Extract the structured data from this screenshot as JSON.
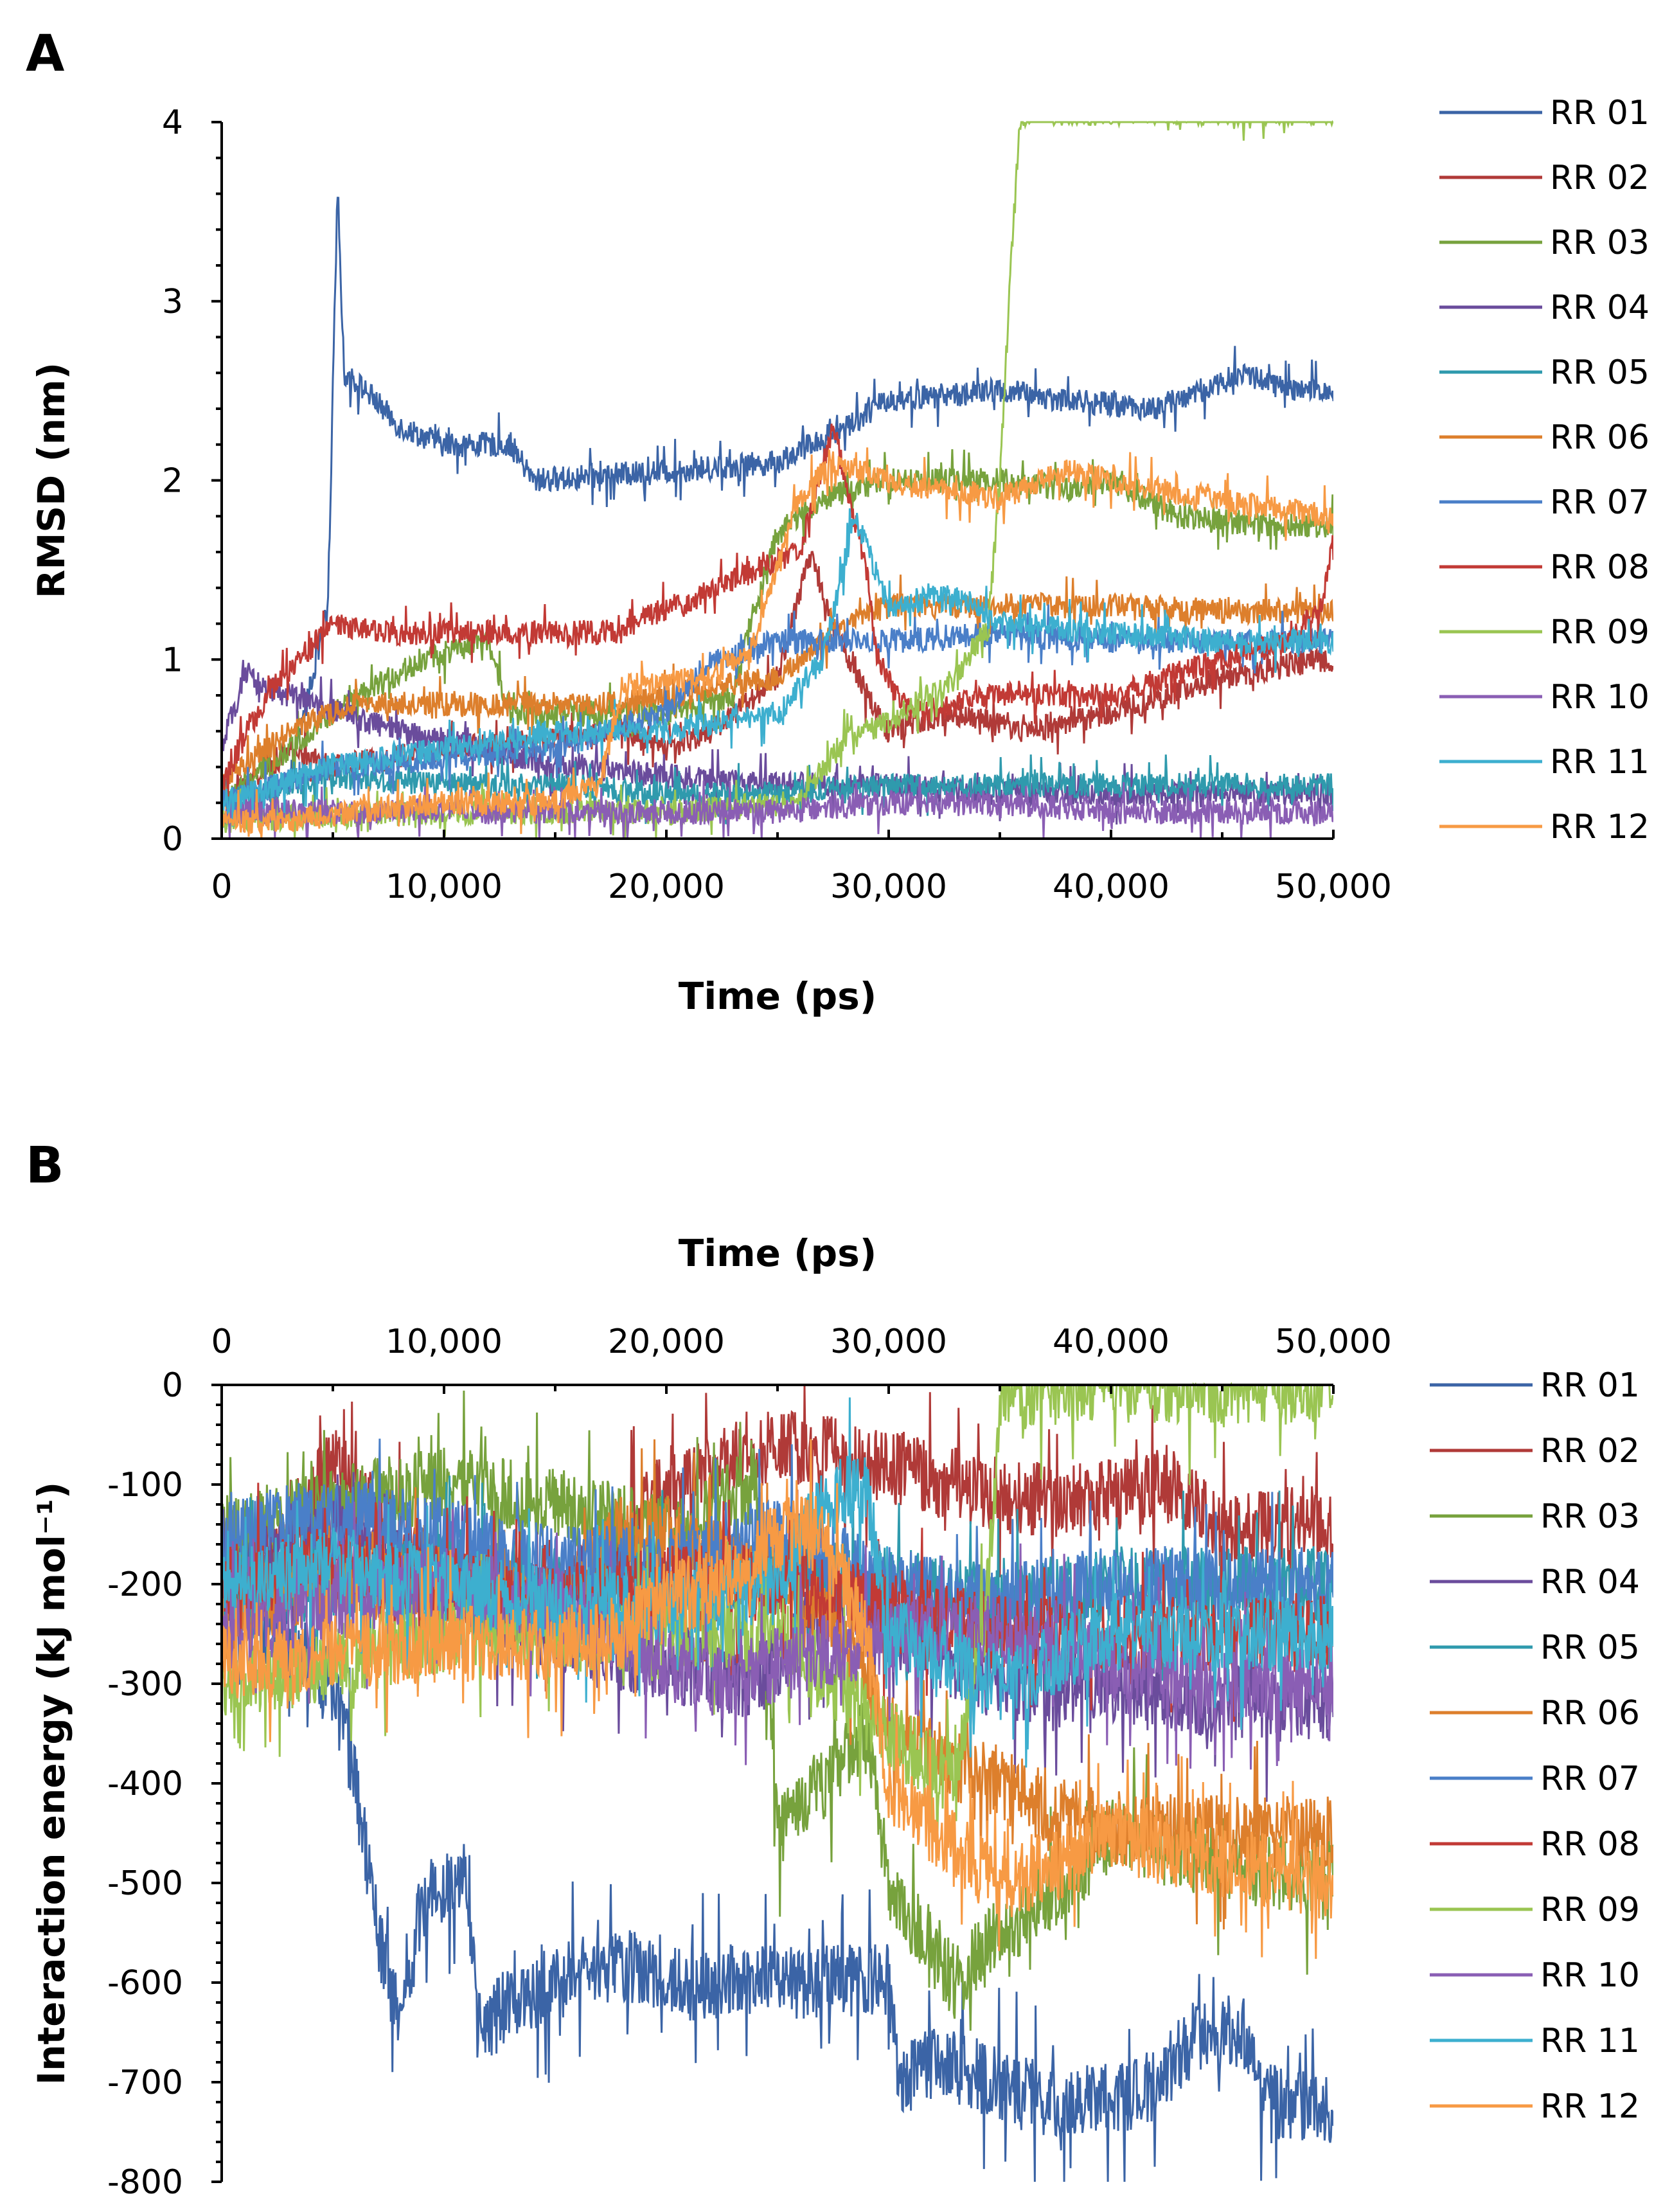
{
  "chart_data": [
    {
      "panel": "A",
      "type": "line",
      "title": "",
      "xlabel": "Time (ps)",
      "ylabel": "RMSD (nm)",
      "xlim": [
        0,
        50000
      ],
      "ylim": [
        0,
        4
      ],
      "x_ticks": [
        0,
        10000,
        20000,
        30000,
        40000,
        50000
      ],
      "x_tick_labels": [
        "0",
        "10,000",
        "20,000",
        "30,000",
        "40,000",
        "50,000"
      ],
      "y_ticks": [
        0,
        1,
        2,
        3,
        4
      ],
      "y_tick_labels": [
        "0",
        "1",
        "2",
        "3",
        "4"
      ],
      "x_axis_position": "bottom",
      "legend_position": "right",
      "grid": false,
      "noise_scale": 0.1,
      "series": [
        {
          "name": "RR 01",
          "color": "#3b64a6",
          "x": [
            0,
            3000,
            4800,
            5200,
            5500,
            6500,
            8000,
            10000,
            13000,
            14000,
            20000,
            25000,
            28000,
            30000,
            35000,
            38000,
            42000,
            44000,
            46000,
            47000,
            48000,
            50000
          ],
          "y": [
            0.1,
            0.3,
            1.3,
            3.7,
            2.6,
            2.5,
            2.3,
            2.2,
            2.2,
            2.0,
            2.05,
            2.1,
            2.3,
            2.45,
            2.5,
            2.45,
            2.4,
            2.5,
            2.6,
            2.55,
            2.5,
            2.5
          ]
        },
        {
          "name": "RR 02",
          "color": "#b03a38",
          "x": [
            0,
            3000,
            5000,
            10000,
            18000,
            20000,
            22000,
            25000,
            26500,
            27500,
            29000,
            30000,
            33000,
            36000,
            40000,
            45000,
            49500,
            50000
          ],
          "y": [
            0.2,
            0.5,
            0.4,
            0.5,
            0.6,
            0.5,
            0.6,
            0.9,
            1.6,
            1.2,
            0.8,
            0.6,
            0.7,
            0.6,
            0.7,
            0.9,
            1.0,
            1.0
          ]
        },
        {
          "name": "RR 03",
          "color": "#77a23d",
          "x": [
            0,
            5000,
            9000,
            12000,
            13000,
            20000,
            23000,
            24000,
            25000,
            27000,
            30000,
            35000,
            38000,
            40000,
            43000,
            47000,
            50000
          ],
          "y": [
            0.2,
            0.7,
            1.0,
            1.1,
            0.7,
            0.7,
            0.8,
            1.3,
            1.7,
            1.9,
            2.0,
            2.0,
            1.95,
            2.0,
            1.8,
            1.75,
            1.75
          ]
        },
        {
          "name": "RR 04",
          "color": "#6a4c9c",
          "x": [
            0,
            1000,
            3000,
            8000,
            12000,
            15000,
            20000,
            25000,
            30000,
            35000,
            40000,
            45000,
            50000
          ],
          "y": [
            0.5,
            0.9,
            0.8,
            0.6,
            0.5,
            0.4,
            0.35,
            0.3,
            0.3,
            0.25,
            0.25,
            0.25,
            0.25
          ]
        },
        {
          "name": "RR 05",
          "color": "#2f9aad",
          "x": [
            0,
            5000,
            10000,
            15000,
            20000,
            25000,
            30000,
            35000,
            40000,
            45000,
            50000
          ],
          "y": [
            0.2,
            0.35,
            0.3,
            0.3,
            0.25,
            0.25,
            0.3,
            0.3,
            0.3,
            0.3,
            0.3
          ]
        },
        {
          "name": "RR 06",
          "color": "#dd7f2c",
          "x": [
            0,
            3000,
            6000,
            10000,
            18000,
            20000,
            25000,
            27000,
            29000,
            30000,
            35000,
            40000,
            45000,
            50000
          ],
          "y": [
            0.3,
            0.6,
            0.75,
            0.75,
            0.75,
            0.8,
            0.9,
            1.1,
            1.25,
            1.3,
            1.3,
            1.3,
            1.27,
            1.27
          ]
        },
        {
          "name": "RR 07",
          "color": "#4a7fc8",
          "x": [
            0,
            5000,
            10000,
            15000,
            20000,
            22000,
            25000,
            28000,
            30000,
            35000,
            40000,
            45000,
            50000
          ],
          "y": [
            0.2,
            0.4,
            0.45,
            0.5,
            0.7,
            1.0,
            1.1,
            1.1,
            1.1,
            1.15,
            1.1,
            1.1,
            1.1
          ]
        },
        {
          "name": "RR 08",
          "color": "#c23a35",
          "x": [
            0,
            2000,
            5000,
            8000,
            12000,
            18000,
            19000,
            21000,
            22000,
            24000,
            26000,
            27500,
            29000,
            29500,
            31000,
            35000,
            40000,
            45000,
            48000,
            49500,
            50000
          ],
          "y": [
            0.3,
            0.8,
            1.2,
            1.15,
            1.15,
            1.15,
            1.25,
            1.3,
            1.4,
            1.5,
            1.6,
            2.3,
            1.5,
            1.0,
            0.7,
            0.8,
            0.8,
            1.0,
            1.1,
            1.3,
            1.7
          ]
        },
        {
          "name": "RR 09",
          "color": "#9ac552",
          "x": [
            0,
            10000,
            20000,
            26000,
            28000,
            30000,
            33000,
            34500,
            35000,
            35500,
            35900,
            36100,
            36300,
            50000
          ],
          "y": [
            0.1,
            0.15,
            0.15,
            0.2,
            0.55,
            0.65,
            0.9,
            1.2,
            2.0,
            3.2,
            4.0,
            4.0,
            4.05,
            4.05
          ]
        },
        {
          "name": "RR 10",
          "color": "#8a5eb4",
          "x": [
            0,
            5000,
            10000,
            15000,
            20000,
            25000,
            30000,
            35000,
            40000,
            45000,
            50000
          ],
          "y": [
            0.15,
            0.15,
            0.15,
            0.15,
            0.15,
            0.15,
            0.2,
            0.2,
            0.15,
            0.15,
            0.15
          ]
        },
        {
          "name": "RR 11",
          "color": "#3dafcf",
          "x": [
            0,
            5000,
            10000,
            15000,
            20000,
            25000,
            27000,
            28500,
            30000,
            33000,
            35000,
            40000,
            45000,
            50000
          ],
          "y": [
            0.2,
            0.4,
            0.5,
            0.6,
            0.6,
            0.7,
            1.0,
            1.8,
            1.3,
            1.35,
            1.2,
            1.15,
            1.1,
            1.1
          ]
        },
        {
          "name": "RR 12",
          "color": "#f79a44",
          "x": [
            0,
            3000,
            6000,
            10000,
            15000,
            17000,
            18000,
            22000,
            24000,
            26000,
            27500,
            30000,
            32000,
            35000,
            38000,
            40000,
            44000,
            47000,
            50000
          ],
          "y": [
            0.1,
            0.1,
            0.15,
            0.2,
            0.2,
            0.3,
            0.85,
            0.9,
            1.1,
            1.9,
            2.1,
            2.0,
            1.95,
            1.9,
            2.05,
            2.0,
            1.9,
            1.85,
            1.8
          ]
        }
      ]
    },
    {
      "panel": "B",
      "type": "line",
      "title": "",
      "xlabel": "Time (ps)",
      "ylabel": "Interaction energy (kJ mol⁻¹)",
      "xlim": [
        0,
        50000
      ],
      "ylim": [
        -800,
        0
      ],
      "x_ticks": [
        0,
        10000,
        20000,
        30000,
        40000,
        50000
      ],
      "x_tick_labels": [
        "0",
        "10,000",
        "20,000",
        "30,000",
        "40,000",
        "50,000"
      ],
      "y_ticks": [
        0,
        -100,
        -200,
        -300,
        -400,
        -500,
        -600,
        -700,
        -800
      ],
      "y_tick_labels": [
        "0",
        "-100",
        "-200",
        "-300",
        "-400",
        "-500",
        "-600",
        "-700",
        "-800"
      ],
      "x_axis_position": "top",
      "legend_position": "right",
      "grid": false,
      "noise_scale": 55,
      "series": [
        {
          "name": "RR 01",
          "color": "#3b64a6",
          "x": [
            0,
            3000,
            5000,
            6000,
            7000,
            8000,
            9000,
            10000,
            11000,
            11500,
            13000,
            15000,
            18000,
            20000,
            25000,
            30000,
            30500,
            32000,
            35000,
            37000,
            40000,
            42000,
            44000,
            46000,
            47000,
            50000
          ],
          "y": [
            -200,
            -250,
            -300,
            -400,
            -550,
            -650,
            -520,
            -500,
            -480,
            -650,
            -620,
            -600,
            -580,
            -600,
            -600,
            -600,
            -700,
            -680,
            -700,
            -720,
            -720,
            -700,
            -650,
            -650,
            -720,
            -730
          ]
        },
        {
          "name": "RR 02",
          "color": "#b03a38",
          "x": [
            0,
            3000,
            5000,
            10000,
            15000,
            20000,
            25000,
            30000,
            35000,
            38000,
            40000,
            43000,
            45000,
            48000,
            50000
          ],
          "y": [
            -200,
            -150,
            -80,
            -200,
            -220,
            -100,
            -60,
            -80,
            -110,
            -120,
            -110,
            -100,
            -150,
            -140,
            -140
          ]
        },
        {
          "name": "RR 03",
          "color": "#77a23d",
          "x": [
            0,
            5000,
            10000,
            15000,
            20000,
            24000,
            25000,
            27000,
            29000,
            30000,
            33000,
            35000,
            38000,
            40000,
            45000,
            50000
          ],
          "y": [
            -150,
            -120,
            -100,
            -120,
            -150,
            -100,
            -450,
            -400,
            -350,
            -500,
            -600,
            -550,
            -500,
            -450,
            -480,
            -500
          ]
        },
        {
          "name": "RR 04",
          "color": "#6a4c9c",
          "x": [
            0,
            5000,
            10000,
            15000,
            20000,
            24000,
            26000,
            28000,
            30000,
            35000,
            40000,
            45000,
            50000
          ],
          "y": [
            -200,
            -150,
            -200,
            -250,
            -280,
            -300,
            -250,
            -220,
            -250,
            -300,
            -300,
            -320,
            -320
          ]
        },
        {
          "name": "RR 05",
          "color": "#2f9aad",
          "x": [
            0,
            5000,
            10000,
            15000,
            20000,
            25000,
            30000,
            35000,
            40000,
            45000,
            50000
          ],
          "y": [
            -200,
            -200,
            -180,
            -200,
            -200,
            -180,
            -200,
            -220,
            -200,
            -200,
            -200
          ]
        },
        {
          "name": "RR 06",
          "color": "#dd7f2c",
          "x": [
            0,
            5000,
            10000,
            15000,
            18000,
            20000,
            25000,
            28000,
            30000,
            35000,
            40000,
            45000,
            50000
          ],
          "y": [
            -220,
            -200,
            -200,
            -220,
            -150,
            -150,
            -200,
            -250,
            -350,
            -400,
            -450,
            -450,
            -450
          ]
        },
        {
          "name": "RR 07",
          "color": "#4a7fc8",
          "x": [
            0,
            5000,
            10000,
            15000,
            20000,
            25000,
            30000,
            35000,
            40000,
            45000,
            50000
          ],
          "y": [
            -150,
            -130,
            -150,
            -180,
            -180,
            -150,
            -200,
            -220,
            -200,
            -200,
            -200
          ]
        },
        {
          "name": "RR 08",
          "color": "#c23a35",
          "x": [
            0,
            5000,
            10000,
            15000,
            20000,
            25000,
            30000,
            35000,
            40000,
            45000,
            50000
          ],
          "y": [
            -200,
            -180,
            -200,
            -220,
            -200,
            -200,
            -220,
            -250,
            -250,
            -250,
            -250
          ]
        },
        {
          "name": "RR 09",
          "color": "#9ac552",
          "x": [
            0,
            5000,
            10000,
            15000,
            20000,
            25000,
            30000,
            33000,
            34500,
            35000,
            35500,
            50000
          ],
          "y": [
            -300,
            -280,
            -250,
            -250,
            -250,
            -250,
            -350,
            -400,
            -200,
            -10,
            -2,
            -2
          ]
        },
        {
          "name": "RR 10",
          "color": "#8a5eb4",
          "x": [
            0,
            5000,
            10000,
            15000,
            18000,
            20000,
            23000,
            25000,
            30000,
            35000,
            40000,
            45000,
            50000
          ],
          "y": [
            -250,
            -220,
            -200,
            -220,
            -250,
            -280,
            -300,
            -280,
            -250,
            -250,
            -280,
            -300,
            -300
          ]
        },
        {
          "name": "RR 11",
          "color": "#3dafcf",
          "x": [
            0,
            5000,
            10000,
            15000,
            20000,
            25000,
            27000,
            29000,
            30000,
            35000,
            40000,
            45000,
            50000
          ],
          "y": [
            -200,
            -180,
            -200,
            -220,
            -220,
            -200,
            -120,
            -100,
            -250,
            -300,
            -250,
            -250,
            -250
          ]
        },
        {
          "name": "RR 12",
          "color": "#f79a44",
          "x": [
            0,
            5000,
            10000,
            15000,
            18000,
            20000,
            22000,
            25000,
            27000,
            29000,
            30000,
            32000,
            35000,
            38000,
            40000,
            45000,
            50000
          ],
          "y": [
            -280,
            -270,
            -260,
            -260,
            -250,
            -220,
            -200,
            -150,
            -150,
            -250,
            -400,
            -450,
            -500,
            -480,
            -450,
            -480,
            -500
          ]
        }
      ]
    }
  ]
}
